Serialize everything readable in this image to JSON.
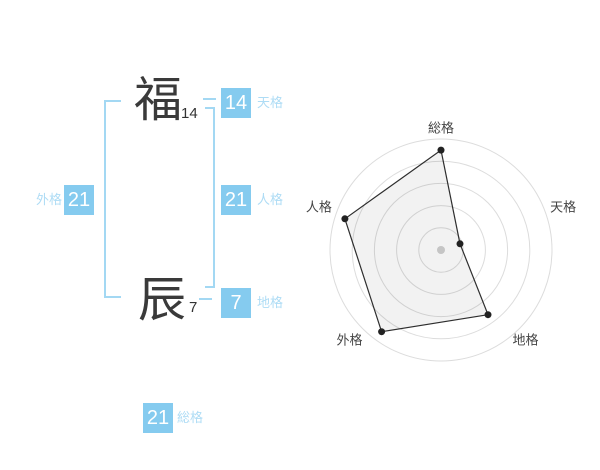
{
  "name": {
    "characters": [
      {
        "char": "福",
        "strokes": "14"
      },
      {
        "char": "辰",
        "strokes": "7"
      }
    ]
  },
  "kaku": {
    "tenkaku": {
      "label": "天格",
      "value": "14"
    },
    "jinkaku": {
      "label": "人格",
      "value": "21"
    },
    "chikaku": {
      "label": "地格",
      "value": "7"
    },
    "gaikaku": {
      "label": "外格",
      "value": "21"
    },
    "soukaku": {
      "label": "総格",
      "value": "21"
    }
  },
  "chart_data": {
    "type": "radar",
    "categories": [
      "総格",
      "天格",
      "地格",
      "外格",
      "人格"
    ],
    "values": [
      0.9,
      0.18,
      0.72,
      0.91,
      0.91
    ],
    "scale": {
      "min": 0,
      "max": 1,
      "rings": 5
    },
    "start_axis": "top",
    "direction": "clockwise",
    "grid": "circular",
    "legend": "none",
    "title": ""
  },
  "colors": {
    "accent_box_blue": "#85cbef",
    "accent_label_blue": "#aedcf5",
    "bracket_blue": "#a3d8f3",
    "kanji_dark": "#3a3a3a",
    "chart_ring": "#dcdcdc",
    "chart_stroke": "#2e2e2e",
    "chart_fill": "rgba(0,0,0,0.05)",
    "chart_point": "#222222",
    "chart_center_dot": "#c5c5c5",
    "chart_label": "#444444"
  }
}
